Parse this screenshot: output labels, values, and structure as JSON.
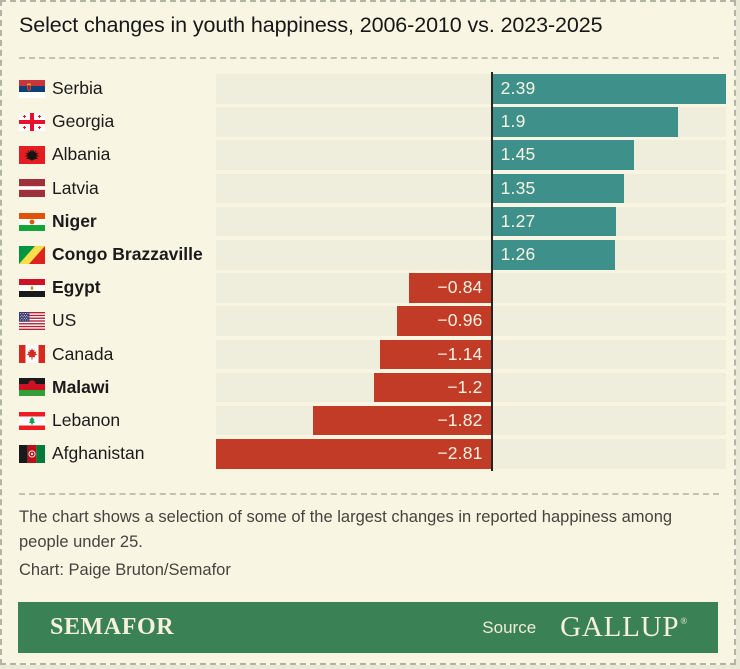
{
  "page": {
    "title": "Select changes in youth happiness, 2006-2010 vs. 2023-2025",
    "footnote": "The chart shows a selection of some of the largest changes in reported happiness among people under 25.",
    "credit": "Chart: Paige Bruton/Semafor"
  },
  "footer": {
    "brand": "SEMAFOR",
    "source_label": "Source",
    "source_name": "GALLUP",
    "source_mark": "®"
  },
  "colors": {
    "background": "#f8f5e2",
    "track": "#efeddc",
    "positive": "#3e918a",
    "negative": "#c13b27",
    "axis": "#242424",
    "footer_green": "#3a8156"
  },
  "chart_data": {
    "type": "bar",
    "orientation": "horizontal",
    "title": "Select changes in youth happiness, 2006-2010 vs. 2023-2025",
    "xlabel": "",
    "ylabel": "",
    "xlim": [
      -2.81,
      2.39
    ],
    "grid": false,
    "legend": false,
    "categories": [
      "Serbia",
      "Georgia",
      "Albania",
      "Latvia",
      "Niger",
      "Congo Brazzaville",
      "Egypt",
      "US",
      "Canada",
      "Malawi",
      "Lebanon",
      "Afghanistan"
    ],
    "values": [
      2.39,
      1.9,
      1.45,
      1.35,
      1.27,
      1.26,
      -0.84,
      -0.96,
      -1.14,
      -1.2,
      -1.82,
      -2.81
    ],
    "value_labels": [
      "2.39",
      "1.9",
      "1.45",
      "1.35",
      "1.27",
      "1.26",
      "−0.84",
      "−0.96",
      "−1.14",
      "−1.2",
      "−1.82",
      "−2.81"
    ],
    "bold_categories": [
      "Niger",
      "Congo Brazzaville",
      "Egypt",
      "Malawi"
    ],
    "flags": [
      "serbia-flag-icon",
      "georgia-flag-icon",
      "albania-flag-icon",
      "latvia-flag-icon",
      "niger-flag-icon",
      "congo-brazzaville-flag-icon",
      "egypt-flag-icon",
      "us-flag-icon",
      "canada-flag-icon",
      "malawi-flag-icon",
      "lebanon-flag-icon",
      "afghanistan-flag-icon"
    ]
  }
}
